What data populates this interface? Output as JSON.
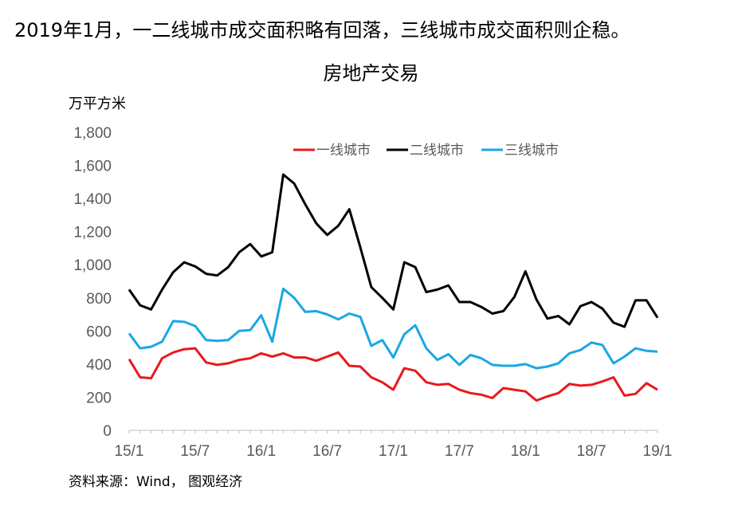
{
  "headline": "2019年1月，一二线城市成交面积略有回落，三线城市成交面积则企稳。",
  "source": "资料来源：Wind， 图观经济",
  "chart_data": {
    "type": "line",
    "title": "房地产交易",
    "ylabel": "万平方米",
    "xlabel": "",
    "ylim": [
      0,
      1800
    ],
    "yticks": [
      0,
      200,
      400,
      600,
      800,
      1000,
      1200,
      1400,
      1600,
      1800
    ],
    "ytick_labels": [
      "0",
      "200",
      "400",
      "600",
      "800",
      "1,000",
      "1,200",
      "1,400",
      "1,600",
      "1,800"
    ],
    "x": [
      "15/1",
      "15/2",
      "15/3",
      "15/4",
      "15/5",
      "15/6",
      "15/7",
      "15/8",
      "15/9",
      "15/10",
      "15/11",
      "15/12",
      "16/1",
      "16/2",
      "16/3",
      "16/4",
      "16/5",
      "16/6",
      "16/7",
      "16/8",
      "16/9",
      "16/10",
      "16/11",
      "16/12",
      "17/1",
      "17/2",
      "17/3",
      "17/4",
      "17/5",
      "17/6",
      "17/7",
      "17/8",
      "17/9",
      "17/10",
      "17/11",
      "17/12",
      "18/1",
      "18/2",
      "18/3",
      "18/4",
      "18/5",
      "18/6",
      "18/7",
      "18/8",
      "18/9",
      "18/10",
      "18/11",
      "18/12",
      "19/1"
    ],
    "xtick_labels": [
      "15/1",
      "15/7",
      "16/1",
      "16/7",
      "17/1",
      "17/7",
      "18/1",
      "18/7",
      "19/1"
    ],
    "legend_position": "top",
    "grid": false,
    "series": [
      {
        "name": "一线城市",
        "color": "#e8191d",
        "values": [
          430,
          320,
          315,
          435,
          470,
          490,
          495,
          410,
          395,
          405,
          425,
          435,
          465,
          445,
          465,
          440,
          440,
          420,
          445,
          470,
          390,
          385,
          320,
          290,
          245,
          375,
          360,
          290,
          275,
          280,
          245,
          225,
          215,
          195,
          255,
          245,
          235,
          180,
          205,
          225,
          280,
          270,
          275,
          295,
          320,
          210,
          220,
          285,
          245
        ]
      },
      {
        "name": "二线城市",
        "color": "#000000",
        "values": [
          850,
          755,
          730,
          850,
          955,
          1015,
          990,
          945,
          935,
          985,
          1075,
          1125,
          1050,
          1075,
          1545,
          1490,
          1365,
          1250,
          1180,
          1235,
          1335,
          1105,
          865,
          800,
          730,
          1015,
          985,
          835,
          850,
          875,
          775,
          775,
          745,
          705,
          720,
          805,
          960,
          790,
          675,
          690,
          640,
          750,
          775,
          735,
          650,
          625,
          785,
          785,
          680
        ]
      },
      {
        "name": "三线城市",
        "color": "#1aa7e5",
        "values": [
          585,
          495,
          505,
          535,
          660,
          655,
          630,
          545,
          540,
          545,
          600,
          605,
          695,
          535,
          855,
          800,
          715,
          720,
          700,
          670,
          705,
          685,
          510,
          545,
          440,
          580,
          635,
          495,
          425,
          460,
          395,
          455,
          435,
          395,
          390,
          390,
          400,
          375,
          385,
          405,
          465,
          485,
          530,
          515,
          405,
          445,
          495,
          480,
          475
        ]
      }
    ]
  }
}
